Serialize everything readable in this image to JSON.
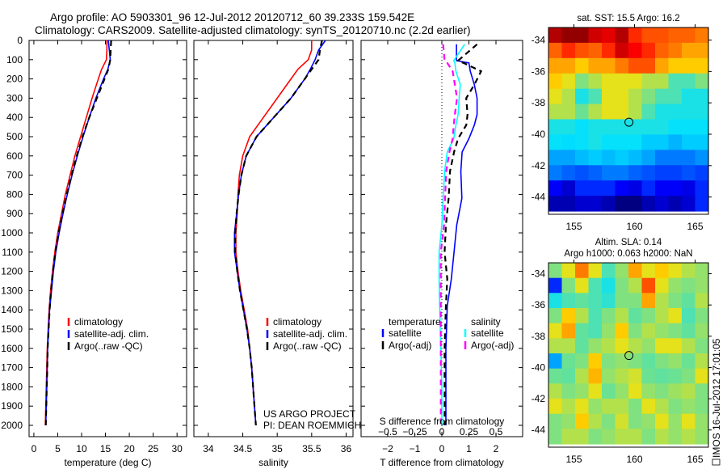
{
  "title": {
    "line1": "Argo profile: AO 5903301_96 12-Jul-2012 20120712_60 39.233S 159.542E",
    "line2": "Climatology: CARS2009. Satellite-adjusted climatology: synTS_20120710.nc (2.2d earlier)"
  },
  "annotations": {
    "project": "US ARGO PROJECT",
    "pi": "PI: DEAN ROEMMICH",
    "timestamp": "IMOS 16-Jul-2012 17:01:05"
  },
  "colors": {
    "climatology": "#ff0000",
    "satellite": "#0000ff",
    "argo": "#000000",
    "s_satellite": "#00ffff",
    "s_argo": "#ff00ff"
  },
  "chart_data": [
    {
      "type": "line",
      "id": "temperature",
      "xlabel": "temperature (deg C)",
      "ylabel": "",
      "xlim": [
        -1,
        32
      ],
      "ylim": [
        2060,
        0
      ],
      "xticks": [
        0,
        5,
        10,
        15,
        20,
        25,
        30
      ],
      "yticks": [
        0,
        100,
        200,
        300,
        400,
        500,
        600,
        700,
        800,
        900,
        1000,
        1100,
        1200,
        1300,
        1400,
        1500,
        1600,
        1700,
        1800,
        1900,
        2000
      ],
      "depths": [
        0,
        50,
        100,
        150,
        200,
        300,
        400,
        500,
        600,
        700,
        800,
        900,
        1000,
        1100,
        1200,
        1300,
        1400,
        1500,
        1600,
        1700,
        1800,
        1900,
        2000
      ],
      "legend": [
        "climatology",
        "satellite-adj. clim.",
        "Argo(..raw -QC)"
      ],
      "series": [
        {
          "name": "climatology",
          "color": "#ff0000",
          "dash": false,
          "values": [
            15.3,
            15.3,
            15.2,
            14.2,
            13.5,
            12.2,
            11.0,
            9.8,
            8.6,
            7.6,
            6.6,
            5.8,
            5.0,
            4.4,
            3.9,
            3.5,
            3.2,
            3.0,
            2.8,
            2.7,
            2.6,
            2.5,
            2.4
          ]
        },
        {
          "name": "satellite-adj. clim.",
          "color": "#0000ff",
          "dash": false,
          "values": [
            15.6,
            15.8,
            16.0,
            15.5,
            14.6,
            13.0,
            11.6,
            10.3,
            9.1,
            8.0,
            7.0,
            6.1,
            5.3,
            4.6,
            4.1,
            3.7,
            3.3,
            3.1,
            2.9,
            2.8,
            2.7,
            2.6,
            2.5
          ]
        },
        {
          "name": "Argo(..raw -QC)",
          "color": "#000000",
          "dash": true,
          "values": [
            16.2,
            16.1,
            16.0,
            15.6,
            14.8,
            13.2,
            11.6,
            10.2,
            9.0,
            7.9,
            6.9,
            6.0,
            5.2,
            4.5,
            4.0,
            3.6,
            3.3,
            3.1,
            2.9,
            2.8,
            2.7,
            2.6,
            2.5
          ]
        }
      ]
    },
    {
      "type": "line",
      "id": "salinity",
      "xlabel": "salinity",
      "xlim": [
        33.79,
        36.1
      ],
      "ylim": [
        2060,
        0
      ],
      "xticks": [
        34,
        34.5,
        35,
        35.5,
        36
      ],
      "depths": [
        0,
        50,
        100,
        150,
        200,
        300,
        400,
        500,
        600,
        700,
        800,
        900,
        1000,
        1100,
        1200,
        1300,
        1400,
        1500,
        1600,
        1700,
        1800,
        1900,
        2000
      ],
      "legend": [
        "climatology",
        "satellite-adj. clim.",
        "Argo(..raw -QC)"
      ],
      "series": [
        {
          "name": "climatology",
          "color": "#ff0000",
          "dash": false,
          "values": [
            35.5,
            35.5,
            35.45,
            35.3,
            35.2,
            35.0,
            34.8,
            34.6,
            34.5,
            34.45,
            34.43,
            34.42,
            34.4,
            34.4,
            34.43,
            34.47,
            34.52,
            34.57,
            34.6,
            34.63,
            34.65,
            34.67,
            34.69
          ]
        },
        {
          "name": "satellite-adj. clim.",
          "color": "#0000ff",
          "dash": false,
          "values": [
            35.7,
            35.6,
            35.55,
            35.48,
            35.4,
            35.2,
            34.95,
            34.7,
            34.55,
            34.48,
            34.44,
            34.41,
            34.38,
            34.38,
            34.42,
            34.46,
            34.51,
            34.56,
            34.6,
            34.63,
            34.65,
            34.67,
            34.69
          ]
        },
        {
          "name": "Argo(..raw -QC)",
          "color": "#000000",
          "dash": true,
          "values": [
            35.65,
            35.62,
            35.6,
            35.5,
            35.4,
            35.2,
            34.95,
            34.7,
            34.55,
            34.48,
            34.44,
            34.41,
            34.39,
            34.39,
            34.42,
            34.46,
            34.51,
            34.56,
            34.6,
            34.63,
            34.65,
            34.67,
            34.69
          ]
        }
      ]
    },
    {
      "type": "line",
      "id": "difference",
      "xlabel": "T difference from climatology",
      "x2label": "S difference from climatology",
      "xlim": [
        -2.985,
        2.985
      ],
      "x2lim": [
        -0.746,
        0.746
      ],
      "ylim": [
        2060,
        0
      ],
      "xticks": [
        -2,
        -1,
        0,
        1,
        2
      ],
      "x2ticks": [
        -0.5,
        -0.25,
        0,
        0.25,
        0.5
      ],
      "depths": [
        20,
        105,
        117,
        160,
        230,
        300,
        385,
        440,
        510,
        580,
        680,
        820,
        960,
        1100,
        1240,
        1380,
        1600,
        1800,
        2000
      ],
      "legend_headers": [
        "temperature",
        "salinity"
      ],
      "legend": [
        "satellite",
        "Argo(-adj)",
        "satellite",
        "Argo(-adj)"
      ],
      "series": [
        {
          "name": "T satellite",
          "axis": "T",
          "color": "#0000ff",
          "dash": false,
          "values": [
            0.54,
            0.54,
            1.0,
            1.05,
            1.2,
            1.3,
            1.3,
            1.2,
            1.0,
            0.75,
            0.7,
            0.74,
            0.55,
            0.45,
            0.35,
            0.2,
            0.15,
            0.15,
            0.15
          ]
        },
        {
          "name": "T Argo(-adj)",
          "axis": "T",
          "color": "#000000",
          "dash": true,
          "values": [
            1.3,
            0.6,
            0.8,
            1.45,
            1.2,
            0.9,
            0.95,
            0.9,
            0.6,
            0.45,
            0.3,
            0.25,
            0.15,
            0.1,
            0.2,
            0.15,
            0.1,
            0.1,
            0.1
          ]
        },
        {
          "name": "S satellite",
          "axis": "S",
          "color": "#00ffff",
          "dash": false,
          "values": [
            0.21,
            0.11,
            0.12,
            0.13,
            0.17,
            0.16,
            0.15,
            0.13,
            0.11,
            0.05,
            0.025,
            0.012,
            0.0,
            -0.025,
            -0.025,
            -0.02,
            -0.01,
            0.0,
            0.0
          ]
        },
        {
          "name": "S Argo(-adj)",
          "axis": "S",
          "color": "#ff00ff",
          "dash": true,
          "values": [
            0.012,
            0.025,
            0.05,
            0.1,
            0.12,
            0.14,
            0.12,
            0.11,
            0.1,
            0.07,
            0.04,
            0.03,
            0.02,
            -0.01,
            -0.01,
            -0.01,
            -0.01,
            -0.01,
            -0.01
          ]
        }
      ]
    },
    {
      "type": "heatmap",
      "id": "sst_map",
      "title": "sat. SST: 15.5 Argo: 16.2",
      "xlim": [
        152.9,
        166.1
      ],
      "ylim": [
        -45.1,
        -33.2
      ],
      "xticks": [
        155,
        160,
        165
      ],
      "yticks": [
        -34,
        -36,
        -38,
        -40,
        -42,
        -44
      ],
      "clim": [
        9,
        19
      ],
      "lat": [
        -33.5,
        -34.5,
        -35.5,
        -36.5,
        -37.5,
        -38.5,
        -39.5,
        -40.5,
        -41.5,
        -42.5,
        -43.5,
        -44.6
      ],
      "lon": [
        153.45,
        154.55,
        155.65,
        156.75,
        157.85,
        158.95,
        160.05,
        161.15,
        162.25,
        163.35,
        164.45,
        165.55
      ],
      "values": [
        [
          18.5,
          18.8,
          18.8,
          18.2,
          18.0,
          18.5,
          17.5,
          17.0,
          17.0,
          16.8,
          16.8,
          16.5
        ],
        [
          16.8,
          17.5,
          17.0,
          16.8,
          17.5,
          18.2,
          17.8,
          17.5,
          16.8,
          16.5,
          16.0,
          16.0
        ],
        [
          16.0,
          16.0,
          15.5,
          16.0,
          16.0,
          16.5,
          17.0,
          17.0,
          16.0,
          15.5,
          15.5,
          15.5
        ],
        [
          15.5,
          15.0,
          14.0,
          14.5,
          15.0,
          15.0,
          15.0,
          14.5,
          14.5,
          13.5,
          13.5,
          14.0
        ],
        [
          15.0,
          14.5,
          13.0,
          13.5,
          15.0,
          15.0,
          14.5,
          14.0,
          13.5,
          13.5,
          13.0,
          13.0
        ],
        [
          14.5,
          14.5,
          13.8,
          14.5,
          15.0,
          15.0,
          14.5,
          13.5,
          13.0,
          13.0,
          13.0,
          13.0
        ],
        [
          13.0,
          13.0,
          12.8,
          13.0,
          13.0,
          13.0,
          13.0,
          13.0,
          13.0,
          12.8,
          12.8,
          12.8
        ],
        [
          12.8,
          12.7,
          12.8,
          13.0,
          12.8,
          12.8,
          12.8,
          12.5,
          12.5,
          12.2,
          12.5,
          12.5
        ],
        [
          12.0,
          12.0,
          12.3,
          12.5,
          12.3,
          12.5,
          12.3,
          12.0,
          11.5,
          11.5,
          11.5,
          11.8
        ],
        [
          11.5,
          11.2,
          11.0,
          11.2,
          11.5,
          11.5,
          11.2,
          11.0,
          10.8,
          10.8,
          11.0,
          10.8
        ],
        [
          10.2,
          9.8,
          10.5,
          10.5,
          10.5,
          10.2,
          10.0,
          10.5,
          10.2,
          10.2,
          10.0,
          10.5
        ],
        [
          9.5,
          9.5,
          9.8,
          9.8,
          9.5,
          9.0,
          9.0,
          9.5,
          9.8,
          9.5,
          9.8,
          10.5
        ]
      ],
      "marker": {
        "lon": 159.542,
        "lat": -39.233
      }
    },
    {
      "type": "heatmap",
      "id": "sla_map",
      "title": "Altim. SLA: 0.14",
      "subtitle": "Argo h1000: 0.063 h2000: NaN",
      "xlim": [
        152.9,
        166.1
      ],
      "ylim": [
        -45.1,
        -33.3
      ],
      "xticks": [
        155,
        160,
        165
      ],
      "yticks": [
        -34,
        -36,
        -38,
        -40,
        -42,
        -44
      ],
      "clim": [
        -0.5,
        0.5
      ],
      "lat": [
        -33.5,
        -34.5,
        -35.5,
        -36.5,
        -37.5,
        -38.5,
        -39.5,
        -40.5,
        -41.5,
        -42.5,
        -43.5,
        -44.6
      ],
      "lon": [
        153.45,
        154.55,
        155.65,
        156.75,
        157.85,
        158.95,
        160.05,
        161.15,
        162.25,
        163.35,
        164.45,
        165.55
      ],
      "values": [
        [
          0.0,
          0.1,
          0.25,
          0.1,
          -0.05,
          0.02,
          0.2,
          0.1,
          0.15,
          0.1,
          0.05,
          0.02
        ],
        [
          -0.35,
          0.0,
          0.1,
          -0.05,
          -0.1,
          0.0,
          0.05,
          0.3,
          0.1,
          0.02,
          0.0,
          0.02
        ],
        [
          -0.1,
          -0.05,
          -0.03,
          -0.05,
          -0.08,
          0.0,
          0.0,
          0.2,
          0.05,
          0.0,
          -0.03,
          0.05
        ],
        [
          0.0,
          0.15,
          0.05,
          -0.05,
          0.0,
          0.05,
          -0.03,
          0.0,
          0.05,
          0.1,
          -0.05,
          0.0
        ],
        [
          0.1,
          0.2,
          -0.03,
          -0.05,
          0.02,
          0.15,
          0.0,
          0.05,
          0.02,
          0.0,
          -0.03,
          0.02
        ],
        [
          0.05,
          0.05,
          -0.03,
          0.02,
          0.05,
          0.1,
          0.05,
          0.02,
          0.1,
          0.1,
          0.05,
          0.0
        ],
        [
          -0.2,
          -0.02,
          0.0,
          0.15,
          0.0,
          0.02,
          0.0,
          -0.03,
          0.0,
          0.02,
          -0.02,
          0.05
        ],
        [
          -0.02,
          -0.03,
          0.05,
          0.18,
          0.02,
          0.05,
          0.08,
          -0.02,
          -0.03,
          -0.02,
          0.0,
          0.1
        ],
        [
          0.05,
          0.0,
          0.02,
          0.1,
          -0.02,
          0.02,
          0.1,
          0.02,
          0.0,
          0.03,
          0.05,
          0.0
        ],
        [
          0.1,
          0.05,
          0.1,
          0.02,
          0.05,
          0.05,
          0.0,
          0.1,
          0.05,
          0.0,
          0.02,
          0.0
        ],
        [
          0.0,
          0.02,
          0.15,
          0.05,
          0.0,
          0.08,
          0.0,
          0.02,
          0.1,
          0.02,
          0.1,
          0.02
        ],
        [
          0.0,
          0.05,
          0.05,
          0.0,
          0.02,
          0.05,
          0.05,
          0.0,
          0.05,
          0.02,
          0.05,
          0.02
        ]
      ],
      "marker": {
        "lon": 159.542,
        "lat": -39.233
      }
    }
  ]
}
